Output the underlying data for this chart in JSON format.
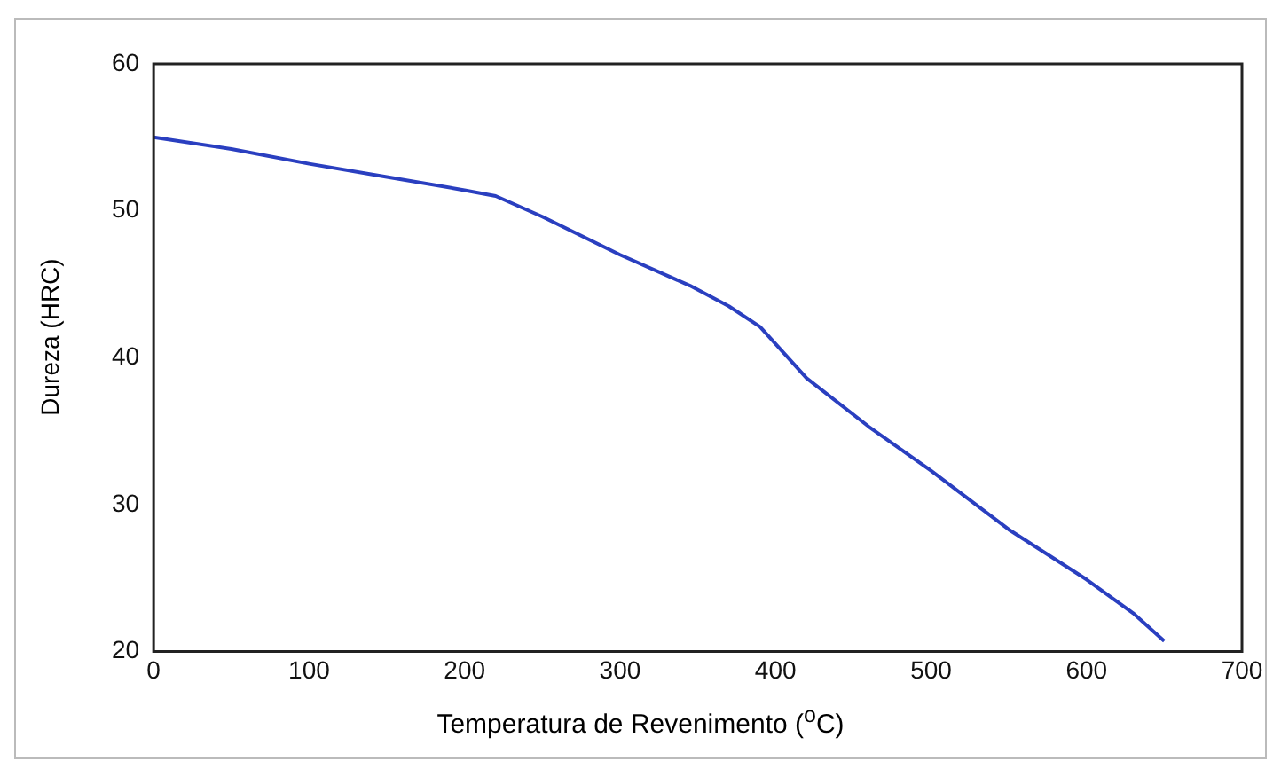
{
  "chart_data": {
    "type": "line",
    "xlabel": "Temperatura de Revenimento ($^{o}$C)",
    "ylabel": "Dureza (HRC)",
    "series": [
      {
        "color": "#2a3fc0",
        "x": [
          0,
          50,
          100,
          150,
          200,
          220,
          250,
          300,
          345,
          370,
          390,
          420,
          460,
          500,
          550,
          600,
          630,
          650
        ],
        "values": [
          55,
          54.2,
          53.2,
          52.3,
          51.4,
          51,
          49.6,
          47,
          44.9,
          43.5,
          42.1,
          38.6,
          35.3,
          32.3,
          28.3,
          24.9,
          22.6,
          20.7
        ]
      }
    ],
    "xlim": [
      0,
      700
    ],
    "xticks": [
      0,
      100,
      200,
      300,
      400,
      500,
      600,
      700
    ],
    "ylim": [
      20,
      60
    ],
    "yticks": [
      20,
      30,
      40,
      50,
      60
    ],
    "grid": false,
    "legend": false,
    "marker": "none",
    "line_style": "solid"
  }
}
